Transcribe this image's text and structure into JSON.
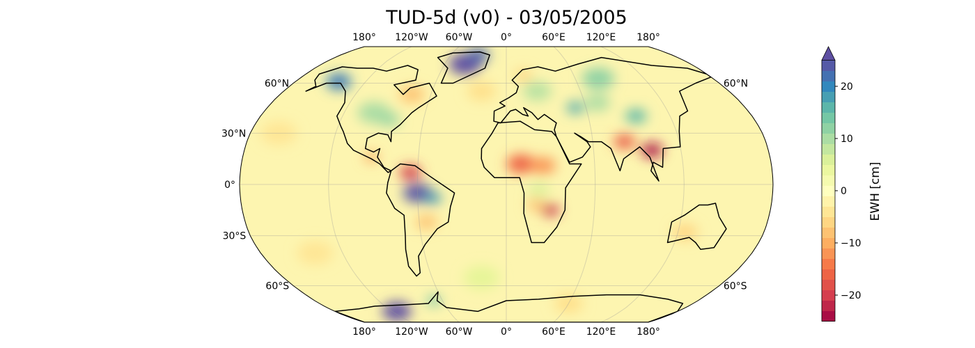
{
  "title": "TUD-5d (v0) - 03/05/2005",
  "map": {
    "projection": "Robinson",
    "lon_labels": [
      "180°",
      "120°W",
      "60°W",
      "0°",
      "60°E",
      "120°E",
      "180°"
    ],
    "lon_values": [
      -180,
      -120,
      -60,
      0,
      60,
      120,
      180
    ],
    "lat_labels_left": [
      {
        "lat": 60,
        "label": "60°N"
      },
      {
        "lat": 30,
        "label": "30°N"
      },
      {
        "lat": 0,
        "label": "0°"
      },
      {
        "lat": -30,
        "label": "30°S"
      },
      {
        "lat": -60,
        "label": "60°S"
      }
    ],
    "lat_labels_right": [
      {
        "lat": 60,
        "label": "60°N"
      },
      {
        "lat": -60,
        "label": "60°S"
      }
    ],
    "background_value": 0,
    "anomalies": [
      {
        "name": "greenland",
        "lon": -40,
        "lat": 73,
        "value": 26,
        "r": 9
      },
      {
        "name": "greenland-ne",
        "lon": -30,
        "lat": 80,
        "value": 22,
        "r": 6
      },
      {
        "name": "alaska",
        "lon": -143,
        "lat": 61,
        "value": 20,
        "r": 7
      },
      {
        "name": "hudson",
        "lon": -75,
        "lat": 53,
        "value": -8,
        "r": 7
      },
      {
        "name": "us-plains",
        "lon": -98,
        "lat": 42,
        "value": 10,
        "r": 9
      },
      {
        "name": "us-east",
        "lon": -85,
        "lat": 38,
        "value": 11,
        "r": 6
      },
      {
        "name": "central-america",
        "lon": -92,
        "lat": 16,
        "value": -11,
        "r": 4
      },
      {
        "name": "venezuela",
        "lon": -65,
        "lat": 7,
        "value": -19,
        "r": 6
      },
      {
        "name": "amazon",
        "lon": -60,
        "lat": -5,
        "value": 24,
        "r": 8
      },
      {
        "name": "amazon-e",
        "lon": -50,
        "lat": -8,
        "value": 18,
        "r": 5
      },
      {
        "name": "south-brazil",
        "lon": -55,
        "lat": -22,
        "value": -8,
        "r": 6
      },
      {
        "name": "sahel",
        "lon": 10,
        "lat": 12,
        "value": -15,
        "r": 8
      },
      {
        "name": "sahel-e",
        "lon": 25,
        "lat": 11,
        "value": -12,
        "r": 7
      },
      {
        "name": "congo",
        "lon": 22,
        "lat": -3,
        "value": 6,
        "r": 6
      },
      {
        "name": "zambia",
        "lon": 30,
        "lat": -15,
        "value": -20,
        "r": 5
      },
      {
        "name": "zambia-w",
        "lon": 20,
        "lat": -12,
        "value": -8,
        "r": 5
      },
      {
        "name": "europe",
        "lon": 25,
        "lat": 55,
        "value": 9,
        "r": 8
      },
      {
        "name": "caspian",
        "lon": 52,
        "lat": 45,
        "value": 16,
        "r": 5
      },
      {
        "name": "kazakh",
        "lon": 70,
        "lat": 48,
        "value": 10,
        "r": 7
      },
      {
        "name": "siberia",
        "lon": 80,
        "lat": 63,
        "value": 12,
        "r": 9
      },
      {
        "name": "mongolia",
        "lon": 95,
        "lat": 40,
        "value": 15,
        "r": 6
      },
      {
        "name": "india",
        "lon": 82,
        "lat": 25,
        "value": -16,
        "r": 6
      },
      {
        "name": "indochina",
        "lon": 100,
        "lat": 20,
        "value": -23,
        "r": 6
      },
      {
        "name": "scandinavia",
        "lon": 15,
        "lat": 65,
        "value": -6,
        "r": 5
      },
      {
        "name": "north-atlantic",
        "lon": -20,
        "lat": 55,
        "value": -5,
        "r": 8
      },
      {
        "name": "australia",
        "lon": 125,
        "lat": -28,
        "value": -6,
        "r": 7
      },
      {
        "name": "west-antarctica",
        "lon": -115,
        "lat": -78,
        "value": 25,
        "r": 8
      },
      {
        "name": "antarctic-peninsula",
        "lon": -68,
        "lat": -70,
        "value": 14,
        "r": 4
      },
      {
        "name": "east-antarctica",
        "lon": 60,
        "lat": -72,
        "value": -5,
        "r": 8
      },
      {
        "name": "pacific-s",
        "lon": -140,
        "lat": -40,
        "value": -4,
        "r": 10
      },
      {
        "name": "pacific-n",
        "lon": -160,
        "lat": 30,
        "value": -4,
        "r": 10
      },
      {
        "name": "southern-ocean",
        "lon": -20,
        "lat": -55,
        "value": 5,
        "r": 10
      }
    ]
  },
  "colorbar": {
    "label": "EWH [cm]",
    "min": -25,
    "max": 25,
    "step": 2,
    "ticks": [
      20,
      10,
      0,
      -10,
      -20
    ],
    "tick_labels": [
      "20",
      "10",
      "0",
      "−10",
      "−20"
    ],
    "extend": "max",
    "colormap": "Spectral",
    "colors": [
      "#9e0142",
      "#d53e4f",
      "#f46d43",
      "#fdae61",
      "#fee08b",
      "#ffffbf",
      "#e6f598",
      "#abdda4",
      "#66c2a5",
      "#3288bd",
      "#5e4fa2"
    ]
  }
}
